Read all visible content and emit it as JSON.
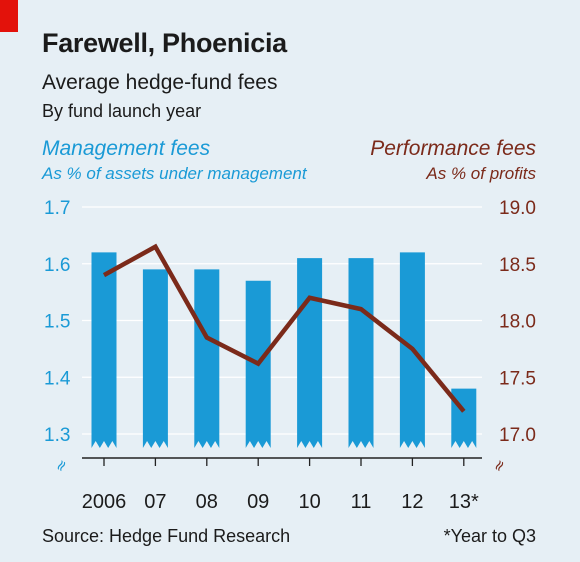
{
  "title": "Farewell, Phoenicia",
  "subtitle": "Average hedge-fund fees",
  "subsubtitle": "By fund launch year",
  "left_axis": {
    "heading": "Management fees",
    "subheading": "As % of assets under management",
    "color": "#1a9ad6"
  },
  "right_axis": {
    "heading": "Performance fees",
    "subheading": "As % of profits",
    "color": "#7b2a1a"
  },
  "source": "Source: Hedge Fund Research",
  "footnote": "*Year to Q3",
  "axis_break_symbol": "≈",
  "chart_data": {
    "type": "bar",
    "categories": [
      "2006",
      "07",
      "08",
      "09",
      "10",
      "11",
      "12",
      "13*"
    ],
    "series": [
      {
        "type": "bar",
        "axis": "left",
        "values": [
          1.62,
          1.59,
          1.59,
          1.57,
          1.61,
          1.61,
          1.62,
          1.38
        ],
        "color": "#1a9ad6"
      },
      {
        "type": "line",
        "axis": "right",
        "values": [
          18.4,
          18.65,
          17.85,
          17.62,
          18.2,
          18.1,
          17.75,
          17.2
        ],
        "color": "#7b2a1a"
      }
    ],
    "left_ylim": [
      1.3,
      1.7
    ],
    "left_ticks": [
      "1.7",
      "1.6",
      "1.5",
      "1.4",
      "1.3"
    ],
    "right_ylim": [
      17.0,
      19.0
    ],
    "right_ticks": [
      "19.0",
      "18.5",
      "18.0",
      "17.5",
      "17.0"
    ],
    "grid": true,
    "bars_truncated_at_baseline": true
  }
}
